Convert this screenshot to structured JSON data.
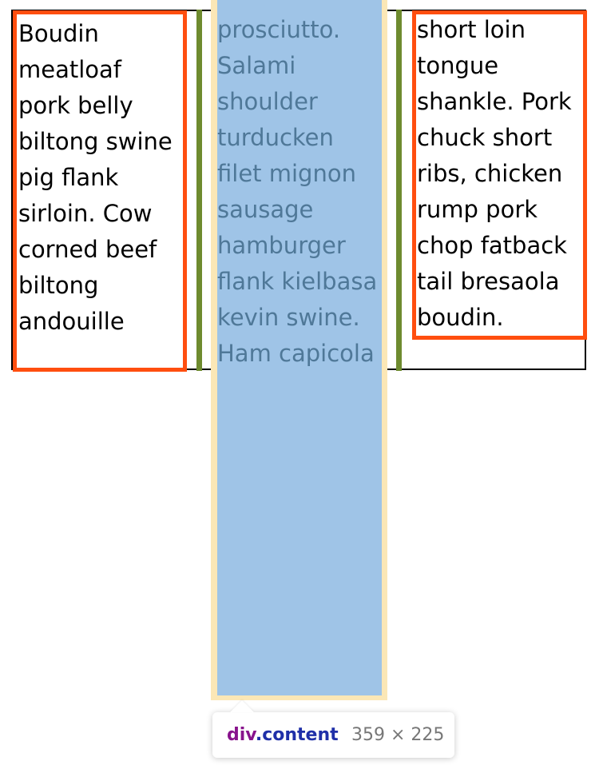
{
  "columns": {
    "left_text": "Boudin\nmeatloaf\npork belly\nbiltong swine\npig flank\nsirloin. Cow\ncorned beef\nbiltong\nandouille",
    "middle_text": "prosciutto.\nSalami\nshoulder\nturducken\nfilet mignon\nsausage\nhamburger\nflank kielbasa\nkevin swine.\nHam capicola",
    "right_text": "short loin\ntongue\nshankle. Pork\nchuck short\nribs, chicken\nrump pork\nchop fatback\ntail bresaola\nboudin."
  },
  "inspector": {
    "tag": "div",
    "class": ".content",
    "size": "359 × 225"
  },
  "colors": {
    "column_border": "#ff4e0f",
    "column_rule": "#6e8b2f",
    "content_highlight": "#9fc4e7",
    "margin_highlight": "#fbe7b6"
  }
}
